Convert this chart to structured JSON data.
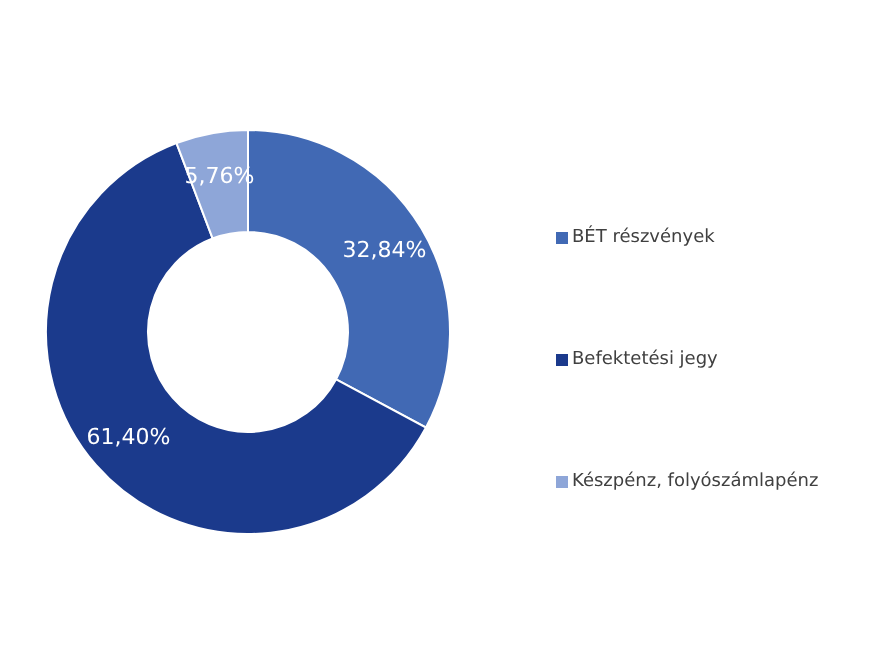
{
  "chart_data": {
    "type": "donut",
    "categories": [
      "BÉT részvények",
      "Befektetési jegy",
      "Készpénz, folyószámlapénz"
    ],
    "values": [
      32.84,
      61.4,
      5.76
    ],
    "colors": [
      "#4169b4",
      "#1b3a8c",
      "#8ea6d8"
    ],
    "value_labels": [
      "32,84%",
      "61,40%",
      "5,76%"
    ],
    "legend": "right"
  }
}
